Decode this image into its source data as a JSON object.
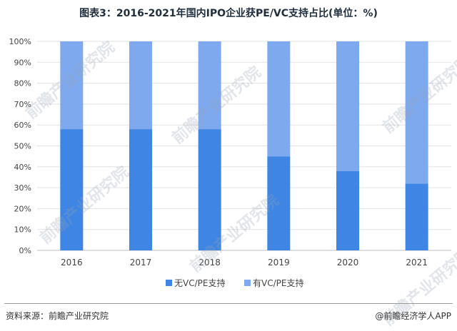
{
  "title": "图表3：2016-2021年国内IPO企业获PE/VC支持占比(单位：%)",
  "source": "资料来源：前瞻产业研究院",
  "credit": "@前瞻经济学人APP",
  "watermark": "前瞻产业研究院",
  "colors": {
    "series1": "#3f86e4",
    "series2": "#7fa9ee",
    "grid": "#e3e3e3",
    "axis": "#bfbfbf"
  },
  "chart_data": {
    "type": "bar",
    "stacked": true,
    "categories": [
      "2016",
      "2017",
      "2018",
      "2019",
      "2020",
      "2021"
    ],
    "series": [
      {
        "name": "无VC/PE支持",
        "values": [
          58,
          58,
          58,
          45,
          38,
          32
        ]
      },
      {
        "name": "有VC/PE支持",
        "values": [
          42,
          42,
          42,
          55,
          62,
          68
        ]
      }
    ],
    "ylim": [
      0,
      100
    ],
    "yticks": [
      "0%",
      "10%",
      "20%",
      "30%",
      "40%",
      "50%",
      "60%",
      "70%",
      "80%",
      "90%",
      "100%"
    ],
    "grid": true,
    "legend": "bottom"
  }
}
